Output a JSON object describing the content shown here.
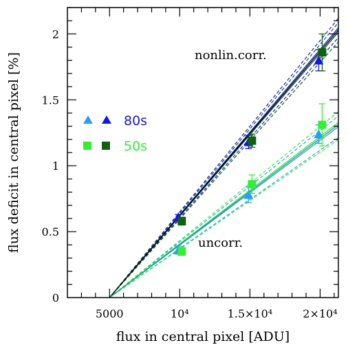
{
  "chart_data": {
    "type": "scatter",
    "title": "",
    "xlabel": "flux in central pixel [ADU]",
    "ylabel": "flux deficit in central pixel [%]",
    "xlim": [
      2000,
      21300
    ],
    "ylim": [
      0,
      2.2
    ],
    "x_ticks": [
      {
        "value": 5000,
        "label": "5000"
      },
      {
        "value": 10000,
        "label": "10⁴"
      },
      {
        "value": 15000,
        "label": "1.5×10⁴"
      },
      {
        "value": 20000,
        "label": "2×10⁴"
      }
    ],
    "y_ticks": [
      {
        "value": 0,
        "label": "0"
      },
      {
        "value": 0.5,
        "label": "0.5"
      },
      {
        "value": 1,
        "label": "1"
      },
      {
        "value": 1.5,
        "label": "1.5"
      },
      {
        "value": 2,
        "label": "2"
      }
    ],
    "annotations": [
      {
        "text": "nonlin.corr.",
        "x": 15500,
        "y": 1.84
      },
      {
        "text": "uncorr.",
        "x": 13300,
        "y": 0.41
      }
    ],
    "legend": [
      {
        "label": "80s",
        "color": "#1515dd",
        "marker": "triangle",
        "colors": [
          "#2a9df4",
          "#1515dd"
        ]
      },
      {
        "label": "50s",
        "color": "#33ee33",
        "marker": "square",
        "colors": [
          "#33ee33",
          "#106010"
        ]
      }
    ],
    "series": [
      {
        "name": "80s",
        "group": "uncorr.",
        "marker": "triangle",
        "color": "#2a9df4",
        "x": [
          10000,
          15000,
          20000
        ],
        "y": [
          0.36,
          0.78,
          1.24
        ],
        "yerr": [
          0.03,
          0.06,
          0.07
        ]
      },
      {
        "group": "nonlin.corr.",
        "marker": "triangle",
        "color": "#1515dd",
        "x": [
          10000,
          15000,
          20000
        ],
        "y": [
          0.61,
          1.18,
          1.8
        ],
        "yerr": [
          0.02,
          0.05,
          0.08
        ]
      },
      {
        "name": "50s",
        "group": "uncorr.",
        "marker": "square",
        "color": "#33ee33",
        "x": [
          10000,
          15000,
          20000
        ],
        "y": [
          0.35,
          0.86,
          1.31
        ],
        "yerr": [
          0.03,
          0.07,
          0.16
        ]
      },
      {
        "group": "nonlin.corr.",
        "marker": "square",
        "color": "#106010",
        "x": [
          10000,
          15000,
          20000
        ],
        "y": [
          0.58,
          1.19,
          1.86
        ],
        "yerr": [
          0.03,
          0.05,
          0.14
        ]
      }
    ],
    "fit_lines": [
      {
        "group": "nonlin.corr.",
        "color": "#1515dd",
        "x0": 5000,
        "slope_per_10k": 1.255,
        "band": [
          -0.045,
          0.045
        ]
      },
      {
        "group": "nonlin.corr.",
        "color": "#106010",
        "x0": 5000,
        "slope_per_10k": 1.235,
        "band": [
          -0.045,
          0.045
        ]
      },
      {
        "group": "nonlin.corr.",
        "color": "#000000",
        "x0": 5000,
        "slope_per_10k": 1.245
      },
      {
        "group": "uncorr.",
        "color": "#2a9df4",
        "x0": 5000,
        "slope_per_10k": 0.795,
        "band": [
          -0.05,
          0.05
        ]
      },
      {
        "group": "uncorr.",
        "color": "#33ee33",
        "x0": 5000,
        "slope_per_10k": 0.815,
        "band": [
          -0.08,
          0.05
        ]
      },
      {
        "group": "uncorr.",
        "color": "#229988",
        "x0": 5000,
        "slope_per_10k": 0.805
      }
    ]
  }
}
